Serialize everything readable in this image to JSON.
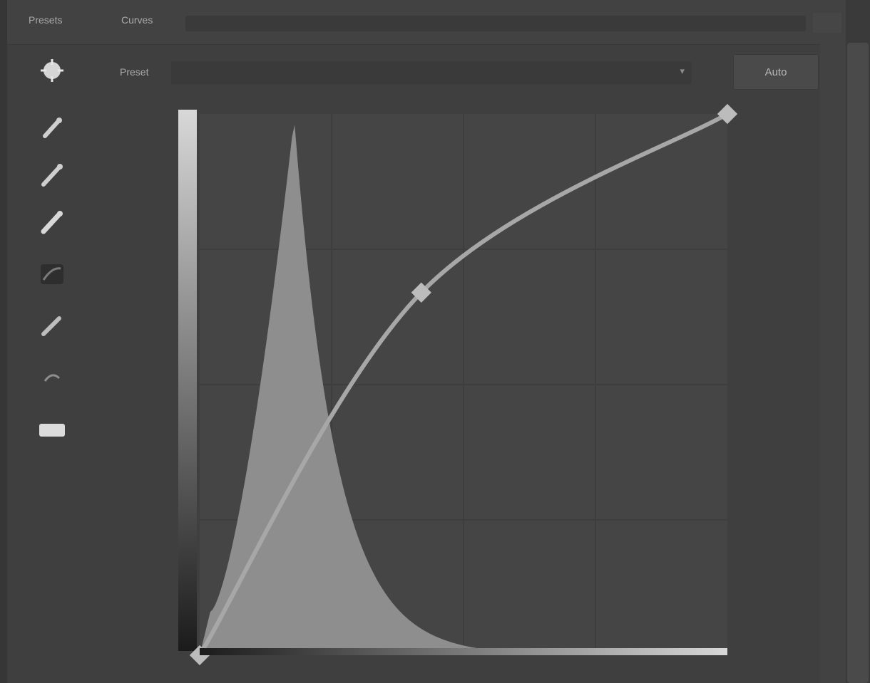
{
  "header": {
    "tabs": [
      {
        "label": "Presets"
      },
      {
        "label": "Curves"
      }
    ]
  },
  "preset": {
    "label": "Preset",
    "value": ""
  },
  "auto_label": "Auto",
  "tools": [
    {
      "icon": "target-adjust-icon"
    },
    {
      "icon": "black-eyedropper-icon"
    },
    {
      "icon": "gray-eyedropper-icon"
    },
    {
      "icon": "white-eyedropper-icon"
    },
    {
      "icon": "curve-points-icon"
    },
    {
      "icon": "pencil-icon"
    },
    {
      "icon": "smooth-icon"
    },
    {
      "icon": "clipping-warning-icon"
    }
  ],
  "curve": {
    "control_points": [
      {
        "input": 0,
        "output": 0
      },
      {
        "input": 0.42,
        "output": 0.67
      },
      {
        "input": 1,
        "output": 1
      }
    ],
    "grid": "4x4",
    "histogram_peak_input": 0.18
  },
  "colors": {
    "panel_bg": "#3f3f3f",
    "graph_bg": "#454545",
    "curve": "#a7a7a7",
    "histogram": "#8e8e8e"
  }
}
